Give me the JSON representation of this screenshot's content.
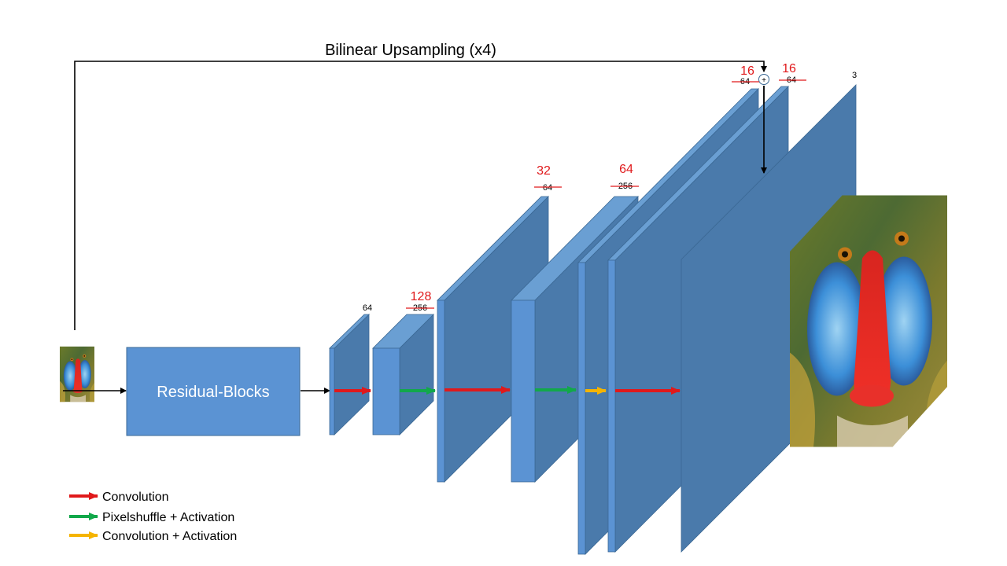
{
  "skip_connection": {
    "label": "Bilinear Upsampling (x4)"
  },
  "residual_blocks": {
    "label": "Residual-Blocks"
  },
  "channels": {
    "c1": {
      "value": "64"
    },
    "c2": {
      "new": "128",
      "old": "256"
    },
    "c3": {
      "new": "32",
      "old": "64"
    },
    "c4": {
      "new": "64",
      "old": "256"
    },
    "c5": {
      "new": "16",
      "old": "64"
    },
    "c6": {
      "new": "16",
      "old": "64"
    },
    "c7": {
      "value": "3"
    }
  },
  "sum_symbol": "+",
  "legend": [
    {
      "label": "Convolution",
      "color": "#e0191b"
    },
    {
      "label": "Pixelshuffle + Activation",
      "color": "#12a84a"
    },
    {
      "label": "Convolution + Activation",
      "color": "#f5b400"
    }
  ],
  "colors": {
    "block_fill": "#5b93d3",
    "block_side": "#4a7aab",
    "block_top": "#6a9fd3",
    "convolution": "#e0191b",
    "pixelshuffle": "#12a84a",
    "conv_activation": "#f5b400"
  },
  "images": {
    "input": "mandrill-photo-small",
    "output": "mandrill-photo-large"
  }
}
